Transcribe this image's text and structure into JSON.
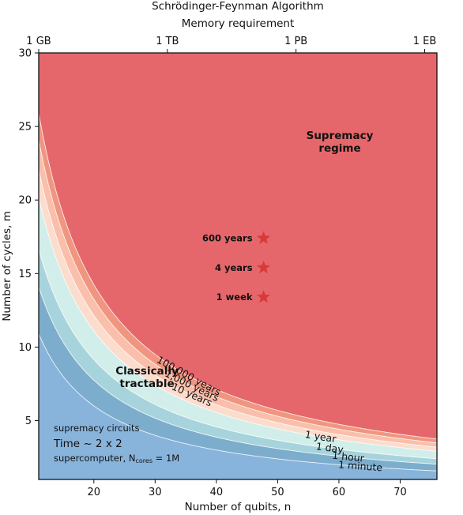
{
  "chart_data": {
    "type": "contour",
    "title": "Schrödinger-Feynman Algorithm",
    "top_axis_label": "Memory requirement",
    "top_tick_labels": [
      "1 GB",
      "1 TB",
      "1 PB",
      "1 EB"
    ],
    "top_tick_positions": [
      11,
      32,
      53,
      74
    ],
    "xlabel": "Number of qubits, n",
    "ylabel": "Number of cycles, m",
    "xlim": [
      11,
      76
    ],
    "ylim": [
      1,
      30
    ],
    "x_ticks": [
      20,
      30,
      40,
      50,
      60,
      70
    ],
    "y_ticks": [
      5,
      10,
      15,
      20,
      25,
      30
    ],
    "contours": [
      {
        "label": "1 minute",
        "k": 120
      },
      {
        "label": "1 hour",
        "k": 155
      },
      {
        "label": "1 day",
        "k": 183
      },
      {
        "label": "1 year",
        "k": 222
      },
      {
        "label": "10 years",
        "k": 243
      },
      {
        "label": "1,000 years",
        "k": 265
      },
      {
        "label": "100,000 years",
        "k": 285
      }
    ],
    "colors": {
      "band_0": "#88b4dc",
      "band_1": "#7dadcc",
      "band_2": "#a7d4dc",
      "band_3": "#d2eeea",
      "band_4": "#fcdccc",
      "band_5": "#f9bfab",
      "band_6": "#f09680",
      "band_7": "#e5676b",
      "star": "#d83a3a"
    },
    "points": [
      {
        "label": "600 years",
        "x": 47.7,
        "y": 17.4
      },
      {
        "label": "4 years",
        "x": 47.7,
        "y": 15.4
      },
      {
        "label": "1 week",
        "x": 47.7,
        "y": 13.4
      }
    ],
    "regions": {
      "supremacy": [
        "Supremacy",
        "regime"
      ],
      "classical": [
        "Classically",
        "tractable"
      ]
    },
    "notes": {
      "line1": "supremacy circuits",
      "line2": "Time ~ 2 x 2",
      "line3": "supercomputer, N",
      "line3_sub": "cores",
      "line3_tail": " = 1M"
    }
  }
}
